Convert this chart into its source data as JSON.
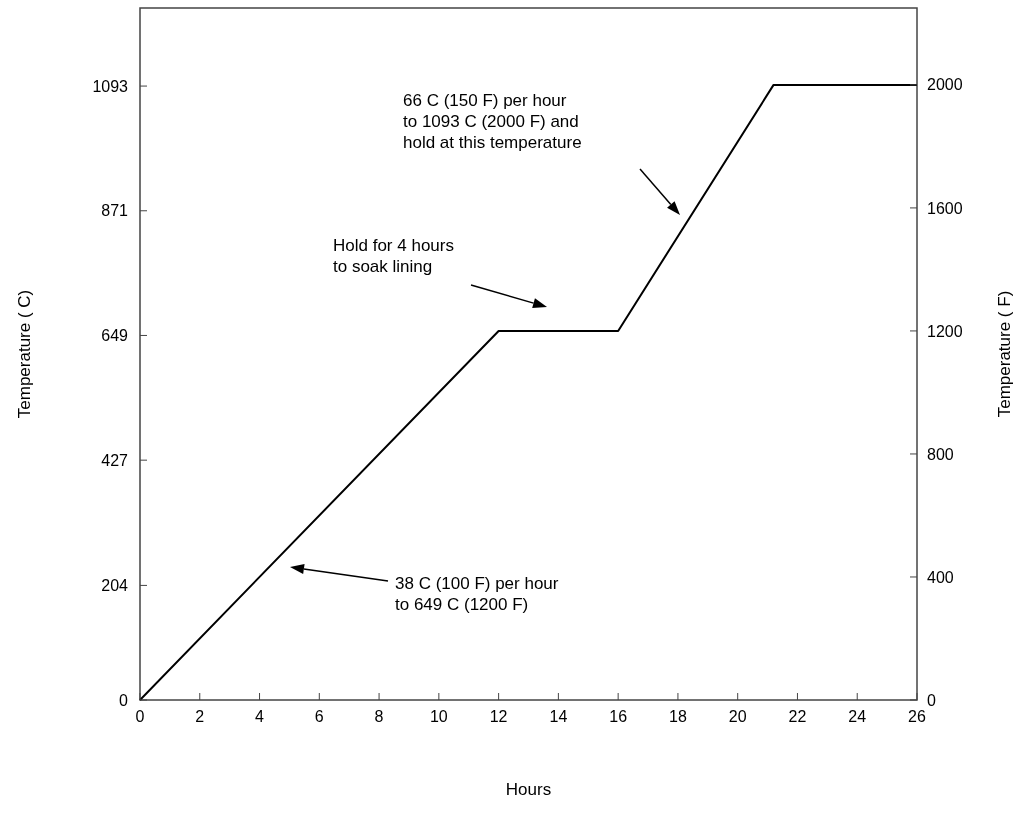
{
  "chart_data": {
    "type": "line",
    "xlabel": "Hours",
    "ylabel": "Temperature ( C)",
    "y2label": "Temperature ( F)",
    "x": [
      0,
      12,
      16,
      21.2,
      26
    ],
    "series": [
      {
        "color": "#000000",
        "axis": "y2",
        "values": [
          0,
          1200,
          1200,
          2000,
          2000
        ]
      }
    ],
    "xlim": [
      0,
      26
    ],
    "xticks": [
      0,
      2,
      4,
      6,
      8,
      10,
      12,
      14,
      16,
      18,
      20,
      22,
      24,
      26
    ],
    "ylim": [
      0,
      1232
    ],
    "yticks": [
      0,
      204,
      427,
      649,
      871,
      1093
    ],
    "y2lim": [
      0,
      2250
    ],
    "y2ticks": [
      0,
      400,
      800,
      1200,
      1600,
      2000
    ],
    "annotations": [
      "38 C (100 F) per hour\nto 649 C (1200 F)",
      "Hold for 4 hours\nto soak lining",
      "66 C (150 F) per hour\nto 1093 C (2000 F) and\nhold at this temperature"
    ]
  }
}
